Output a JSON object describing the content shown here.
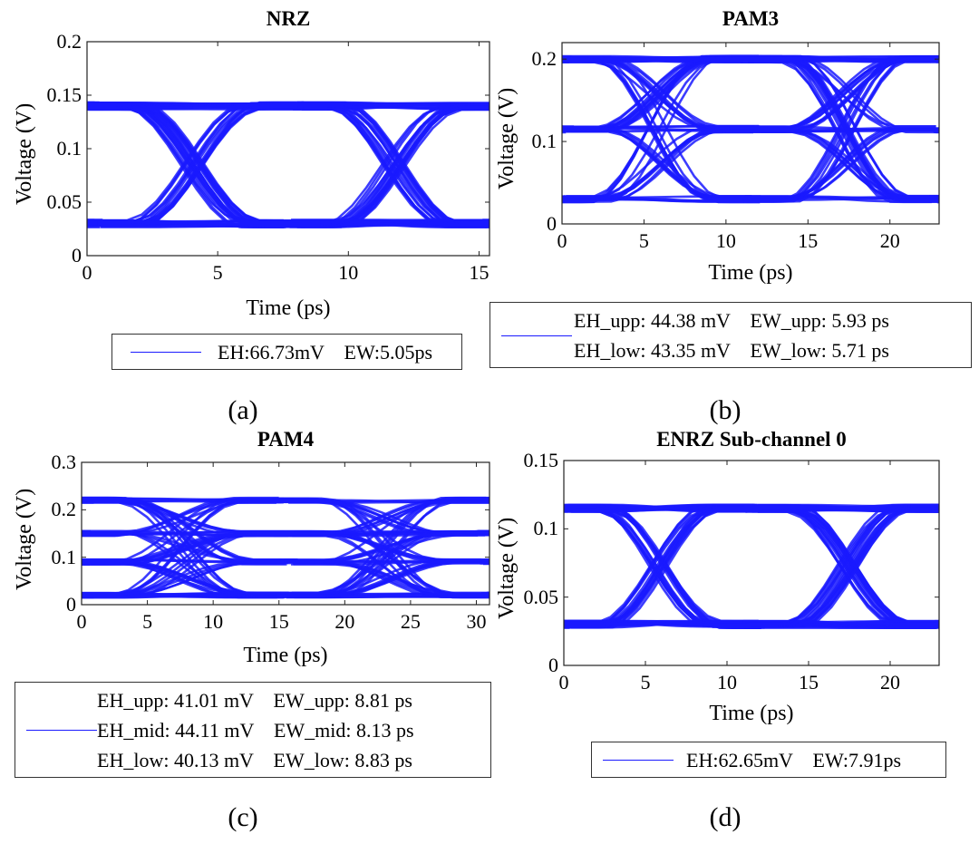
{
  "chart_data": [
    {
      "id": "a",
      "type": "line",
      "subtype": "eye-diagram",
      "title": "NRZ",
      "xlabel": "Time (ps)",
      "ylabel": "Voltage (V)",
      "xlim": [
        0,
        15.4
      ],
      "ylim": [
        0,
        0.2
      ],
      "xticks": [
        0,
        5,
        10,
        15
      ],
      "yticks": [
        0,
        0.05,
        0.1,
        0.15,
        0.2
      ],
      "ytick_labels": [
        "0",
        "0.05",
        "0.1",
        "0.15",
        "0.2"
      ],
      "levels": [
        0.03,
        0.14
      ],
      "crossings": [
        4,
        11.7
      ],
      "ui": 7.7,
      "series_color": "#1a1aff",
      "legend": [
        "EH:66.73mV    EW:5.05ps"
      ],
      "caption": "(a)"
    },
    {
      "id": "b",
      "type": "line",
      "subtype": "eye-diagram",
      "title": "PAM3",
      "xlabel": "Time (ps)",
      "ylabel": "Voltage (V)",
      "xlim": [
        0,
        23
      ],
      "ylim": [
        0,
        0.22
      ],
      "xticks": [
        0,
        5,
        10,
        15,
        20
      ],
      "yticks": [
        0,
        0.1,
        0.2
      ],
      "ytick_labels": [
        "0",
        "0.1",
        "0.2"
      ],
      "levels": [
        0.03,
        0.115,
        0.2
      ],
      "crossings": [
        5.8,
        17.3
      ],
      "ui": 11.5,
      "series_color": "#1a1aff",
      "legend": [
        "EH_upp: 44.38 mV    EW_upp: 5.93 ps",
        "EH_low: 43.35 mV    EW_low: 5.71 ps"
      ],
      "caption": "(b)"
    },
    {
      "id": "c",
      "type": "line",
      "subtype": "eye-diagram",
      "title": "PAM4",
      "xlabel": "Time (ps)",
      "ylabel": "Voltage (V)",
      "xlim": [
        0,
        31
      ],
      "ylim": [
        0,
        0.3
      ],
      "xticks": [
        0,
        5,
        10,
        15,
        20,
        25,
        30
      ],
      "yticks": [
        0,
        0.1,
        0.2,
        0.3
      ],
      "ytick_labels": [
        "0",
        "0.1",
        "0.2",
        "0.3"
      ],
      "levels": [
        0.02,
        0.09,
        0.15,
        0.22
      ],
      "crossings": [
        7.7,
        23.2
      ],
      "ui": 15.5,
      "series_color": "#1a1aff",
      "legend": [
        "EH_upp: 41.01 mV    EW_upp: 8.81 ps",
        "EH_mid: 44.11 mV    EW_mid: 8.13 ps",
        "EH_low: 40.13 mV    EW_low: 8.83 ps"
      ],
      "caption": "(c)"
    },
    {
      "id": "d",
      "type": "line",
      "subtype": "eye-diagram",
      "title": "ENRZ Sub-channel 0",
      "xlabel": "Time (ps)",
      "ylabel": "Voltage (V)",
      "xlim": [
        0,
        23
      ],
      "ylim": [
        0,
        0.15
      ],
      "xticks": [
        0,
        5,
        10,
        15,
        20
      ],
      "yticks": [
        0,
        0.05,
        0.1,
        0.15
      ],
      "ytick_labels": [
        "0",
        "0.05",
        "0.1",
        "0.15"
      ],
      "levels": [
        0.03,
        0.115
      ],
      "crossings": [
        5.8,
        17.4
      ],
      "ui": 11.6,
      "series_color": "#1a1aff",
      "legend": [
        "EH:62.65mV    EW:7.91ps"
      ],
      "caption": "(d)"
    }
  ]
}
